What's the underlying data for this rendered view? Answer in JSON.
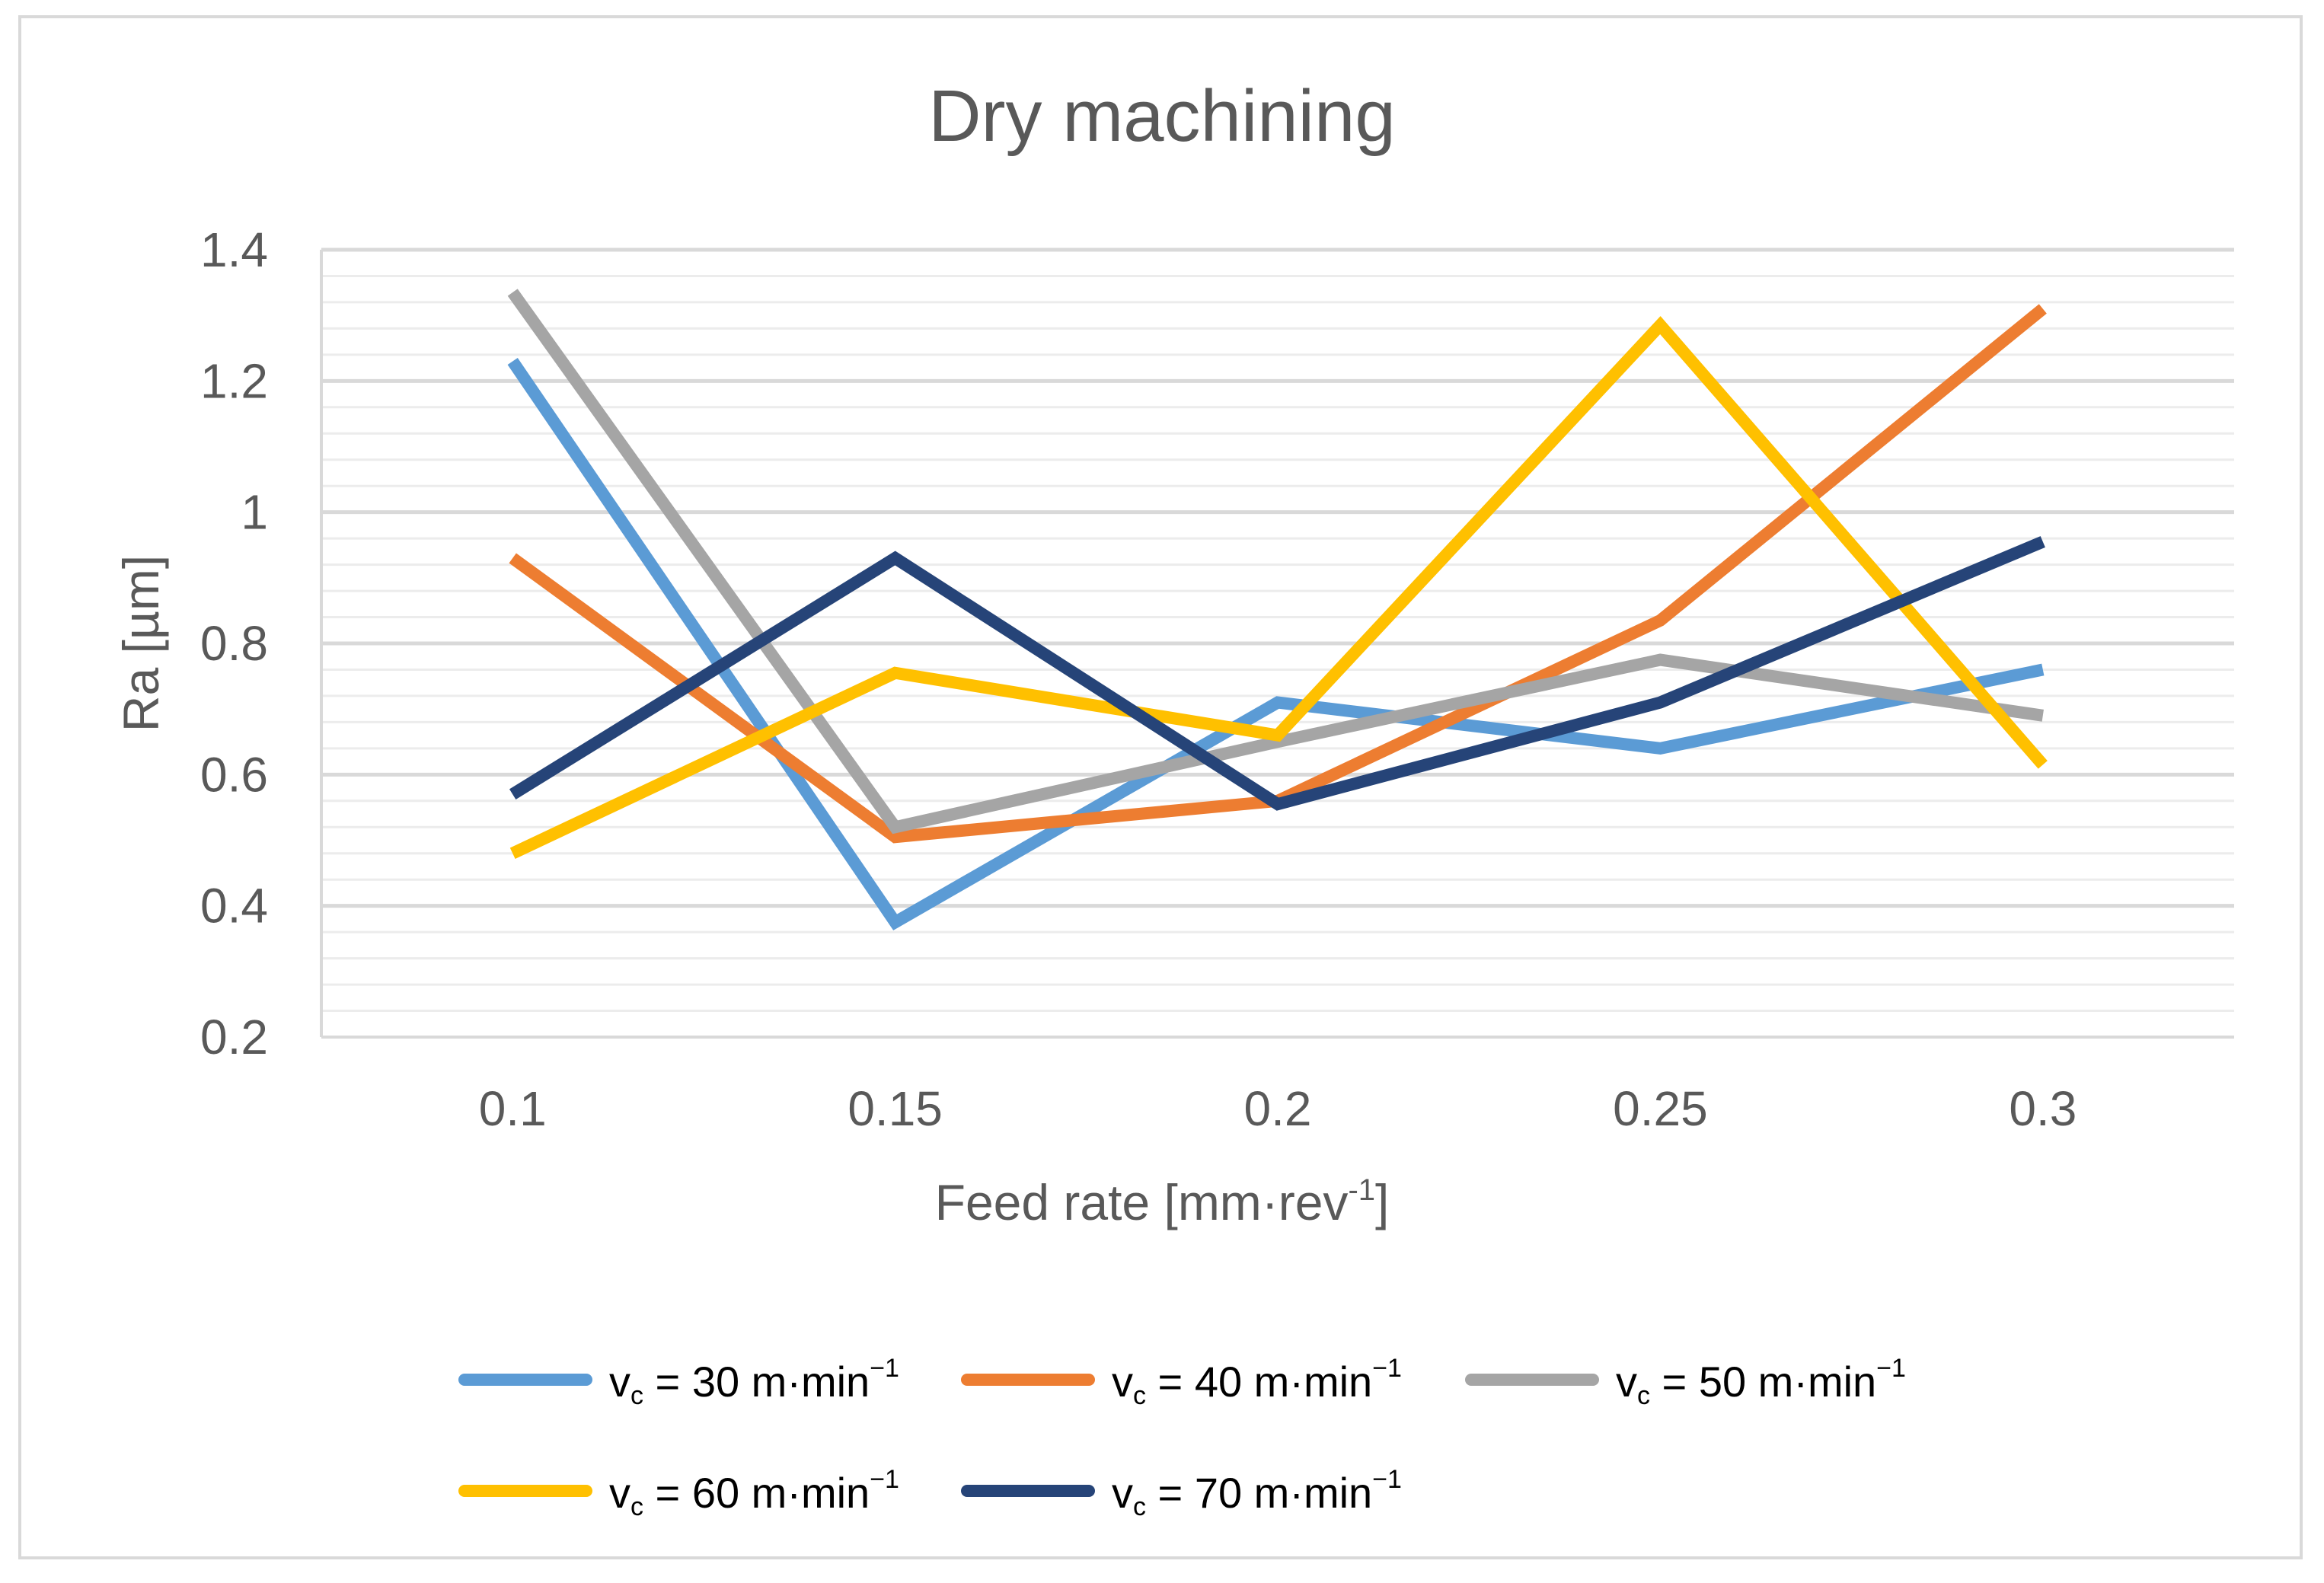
{
  "chart_data": {
    "type": "line",
    "title": "Dry machining",
    "xlabel": "Feed rate [mm·rev",
    "xlabel_sup": "-1",
    "xlabel_end": "]",
    "ylabel": "Ra [µm]",
    "ylim": [
      0.2,
      1.4
    ],
    "yticks": [
      0.2,
      0.4,
      0.6,
      0.8,
      1,
      1.2,
      1.4
    ],
    "ytick_labels": [
      "0.2",
      "0.4",
      "0.6",
      "0.8",
      "1",
      "1.2",
      "1.4"
    ],
    "categories": [
      "0.1",
      "0.15",
      "0.2",
      "0.25",
      "0.3"
    ],
    "grid": true,
    "legend_position": "bottom",
    "series": [
      {
        "name": "v",
        "sub": "c",
        "rest": " = 30 m·min",
        "sup": "−1",
        "color": "#5b9bd5",
        "values": [
          1.23,
          0.375,
          0.71,
          0.64,
          0.76
        ]
      },
      {
        "name": "v",
        "sub": "c",
        "rest": " = 40 m·min",
        "sup": "−1",
        "color": "#ed7d31",
        "values": [
          0.93,
          0.505,
          0.56,
          0.835,
          1.31
        ]
      },
      {
        "name": "v",
        "sub": "c",
        "rest": " = 50 m·min",
        "sup": "−1",
        "color": "#a5a5a5",
        "values": [
          1.335,
          0.52,
          0.65,
          0.775,
          0.69
        ]
      },
      {
        "name": "v",
        "sub": "c",
        "rest": " = 60 m·min",
        "sup": "−1",
        "color": "#ffc000",
        "values": [
          0.48,
          0.755,
          0.66,
          1.285,
          0.615
        ]
      },
      {
        "name": "v",
        "sub": "c",
        "rest": " = 70 m·min",
        "sup": "−1",
        "color": "#264478",
        "values": [
          0.57,
          0.93,
          0.555,
          0.71,
          0.955
        ]
      }
    ]
  }
}
